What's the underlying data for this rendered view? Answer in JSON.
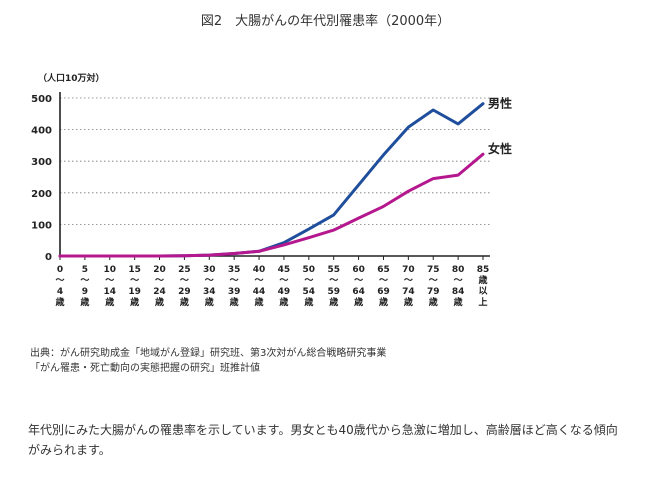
{
  "chart_data": {
    "type": "line",
    "title": "図2　大腸がんの年代別罹患率（2000年）",
    "ylabel": "（人口10万対）",
    "ylim": [
      0,
      500
    ],
    "yticks": [
      0,
      100,
      200,
      300,
      400,
      500
    ],
    "categories": [
      "0〜4歳",
      "5〜9歳",
      "10〜14歳",
      "15〜19歳",
      "20〜24歳",
      "25〜29歳",
      "30〜34歳",
      "35〜39歳",
      "40〜44歳",
      "45〜49歳",
      "50〜54歳",
      "55〜59歳",
      "60〜64歳",
      "65〜69歳",
      "70〜74歳",
      "75〜79歳",
      "80〜84歳",
      "85歳以上"
    ],
    "tick_labels": [
      [
        "0",
        "〜",
        "4",
        "歳"
      ],
      [
        "5",
        "〜",
        "9",
        "歳"
      ],
      [
        "10",
        "〜",
        "14",
        "歳"
      ],
      [
        "15",
        "〜",
        "19",
        "歳"
      ],
      [
        "20",
        "〜",
        "24",
        "歳"
      ],
      [
        "25",
        "〜",
        "29",
        "歳"
      ],
      [
        "30",
        "〜",
        "34",
        "歳"
      ],
      [
        "35",
        "〜",
        "39",
        "歳"
      ],
      [
        "40",
        "〜",
        "44",
        "歳"
      ],
      [
        "45",
        "〜",
        "49",
        "歳"
      ],
      [
        "50",
        "〜",
        "54",
        "歳"
      ],
      [
        "55",
        "〜",
        "59",
        "歳"
      ],
      [
        "60",
        "〜",
        "64",
        "歳"
      ],
      [
        "65",
        "〜",
        "69",
        "歳"
      ],
      [
        "70",
        "〜",
        "74",
        "歳"
      ],
      [
        "75",
        "〜",
        "79",
        "歳"
      ],
      [
        "80",
        "〜",
        "84",
        "歳"
      ],
      [
        "85",
        "歳",
        "以",
        "上"
      ]
    ],
    "series": [
      {
        "name": "男性",
        "color": "#1f4e9c",
        "values": [
          0,
          0,
          0,
          0,
          0,
          1,
          3,
          8,
          15,
          42,
          85,
          130,
          225,
          320,
          408,
          462,
          418,
          482
        ]
      },
      {
        "name": "女性",
        "color": "#b5188e",
        "values": [
          0,
          0,
          0,
          0,
          0,
          1,
          3,
          8,
          15,
          35,
          58,
          82,
          120,
          157,
          205,
          245,
          256,
          322
        ]
      }
    ],
    "grid": "horizontal-dotted",
    "legend": "inline-right"
  },
  "texts": {
    "source_line1": "出典：がん研究助成金「地域がん登録」研究班、第3次対がん総合戦略研究事業",
    "source_line2": "「がん罹患・死亡動向の実態把握の研究」班推計値",
    "description": "年代別にみた大腸がんの罹患率を示しています。男女とも40歳代から急激に増加し、高齢層ほど高くなる傾向がみられます。"
  }
}
